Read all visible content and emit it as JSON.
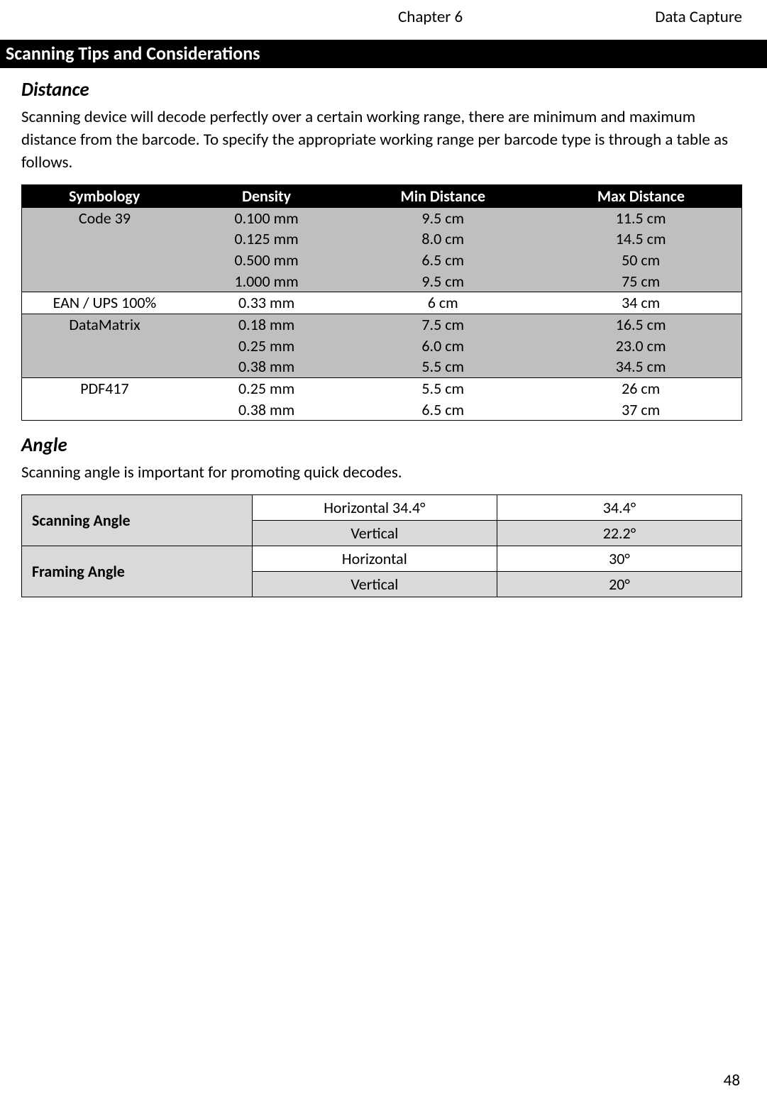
{
  "header": {
    "chapter": "Chapter 6",
    "section": "Data Capture"
  },
  "banner": "Scanning Tips and Considerations",
  "distance": {
    "heading": "Distance",
    "paragraph": "Scanning device will decode perfectly over a certain working range, there are minimum and maximum distance from the barcode. To specify the appropriate working range per barcode type is through a table as follows.",
    "columns": [
      "Symbology",
      "Density",
      "Min Distance",
      "Max Distance"
    ],
    "groups": [
      {
        "symbology": "Code 39",
        "shade": true,
        "rows": [
          {
            "density": "0.100 mm",
            "min": "9.5 cm",
            "max": "11.5 cm"
          },
          {
            "density": "0.125 mm",
            "min": "8.0 cm",
            "max": "14.5 cm"
          },
          {
            "density": "0.500 mm",
            "min": "6.5 cm",
            "max": "50 cm"
          },
          {
            "density": "1.000 mm",
            "min": "9.5 cm",
            "max": "75 cm"
          }
        ]
      },
      {
        "symbology": "EAN / UPS 100%",
        "shade": false,
        "rows": [
          {
            "density": "0.33 mm",
            "min": "6 cm",
            "max": "34 cm"
          }
        ]
      },
      {
        "symbology": "DataMatrix",
        "shade": true,
        "rows": [
          {
            "density": "0.18 mm",
            "min": "7.5 cm",
            "max": "16.5 cm"
          },
          {
            "density": "0.25 mm",
            "min": "6.0 cm",
            "max": "23.0 cm"
          },
          {
            "density": "0.38 mm",
            "min": "5.5 cm",
            "max": "34.5 cm"
          }
        ]
      },
      {
        "symbology": "PDF417",
        "shade": false,
        "rows": [
          {
            "density": "0.25 mm",
            "min": "5.5 cm",
            "max": "26 cm"
          },
          {
            "density": "0.38 mm",
            "min": "6.5 cm",
            "max": "37 cm"
          }
        ]
      }
    ]
  },
  "angle": {
    "heading": "Angle",
    "paragraph": "Scanning angle is important for promoting quick decodes.",
    "rows": [
      {
        "label": "Scanning Angle",
        "sub": [
          {
            "axis": "Horizontal 34.4°",
            "value": "34.4°",
            "shade": false
          },
          {
            "axis": "Vertical",
            "value": "22.2°",
            "shade": true
          }
        ]
      },
      {
        "label": "Framing Angle",
        "sub": [
          {
            "axis": "Horizontal",
            "value": "30°",
            "shade": false
          },
          {
            "axis": "Vertical",
            "value": "20°",
            "shade": true
          }
        ]
      }
    ]
  },
  "page_number": "48",
  "colors": {
    "black": "#000000",
    "white": "#ffffff",
    "gray_dark": "#bfbfbf",
    "gray_light": "#d9d9d9"
  }
}
